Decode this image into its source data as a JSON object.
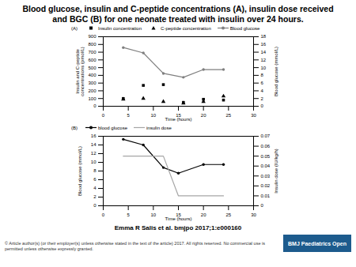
{
  "title": "Blood glucose, insulin and C-peptide concentrations (A), insulin dose received and BGC (B) for one neonate treated with insulin over 24 hours.",
  "citation": "Emma R Salis et al. bmjpo 2017;1:e000160",
  "copyright": "© Article author(s) (or their employer(s) unless otherwise stated in the text of the article) 2017. All rights reserved. No commercial use is permitted unless otherwise expressly granted.",
  "logo": "BMJ Paediatrics Open",
  "chart_data": [
    {
      "type": "line",
      "title": "(A)",
      "xlabel": "Time (hours)",
      "ylabel": "Insulin and C-peptide concentrations (pmol/L)",
      "y2label": "Blood glucose (mmol/L)",
      "x": [
        4,
        8,
        12,
        16,
        20,
        24
      ],
      "xlim": [
        0,
        30
      ],
      "xticks": [
        0,
        5,
        10,
        15,
        20,
        25,
        30
      ],
      "ylim": [
        0,
        900
      ],
      "yticks": [
        0,
        100,
        200,
        300,
        400,
        500,
        600,
        700,
        800,
        900
      ],
      "y2lim": [
        0,
        18
      ],
      "y2ticks": [
        0,
        2,
        4,
        6,
        8,
        10,
        12,
        14,
        16,
        18
      ],
      "grid": false,
      "legend": "top",
      "series": [
        {
          "name": "Insulin concentration",
          "type": "scatter",
          "marker": "square",
          "color": "#000000",
          "values": [
            100,
            270,
            280,
            50,
            90,
            80
          ]
        },
        {
          "name": "C-peptide concentration",
          "type": "scatter",
          "marker": "triangle",
          "color": "#000000",
          "values": [
            90,
            100,
            60,
            40,
            60,
            130
          ]
        },
        {
          "name": "Blood glucose",
          "type": "line",
          "marker": "circle",
          "color": "#7f7f7f",
          "axis": "y2",
          "values": [
            15.2,
            13.8,
            8.5,
            7.5,
            9.5,
            9.5
          ]
        }
      ]
    },
    {
      "type": "line",
      "title": "(B)",
      "xlabel": "Time (hours)",
      "ylabel": "Blood glucose (mmol/L)",
      "y2label": "Insulin dose (IU/kg/h)",
      "x": [
        4,
        8,
        12,
        15,
        20,
        24
      ],
      "xlim": [
        0,
        30
      ],
      "xticks": [
        0,
        5,
        10,
        15,
        20,
        25,
        30
      ],
      "ylim": [
        0,
        16
      ],
      "yticks": [
        0,
        2,
        4,
        6,
        8,
        10,
        12,
        14,
        16
      ],
      "y2lim": [
        0,
        0.07
      ],
      "y2ticks": [
        0,
        0.01,
        0.02,
        0.03,
        0.04,
        0.05,
        0.06,
        0.07
      ],
      "grid": false,
      "legend": "top",
      "series": [
        {
          "name": "blood glucose",
          "type": "line",
          "marker": "circle",
          "color": "#000000",
          "values": [
            15.3,
            14,
            8.8,
            7.5,
            9.5,
            9.5
          ]
        },
        {
          "name": "insulin dose",
          "type": "line",
          "marker": "none",
          "color": "#a6a6a6",
          "axis": "y2",
          "values": [
            0.05,
            0.05,
            0.05,
            0.01,
            0.01,
            0.01
          ]
        }
      ]
    }
  ]
}
